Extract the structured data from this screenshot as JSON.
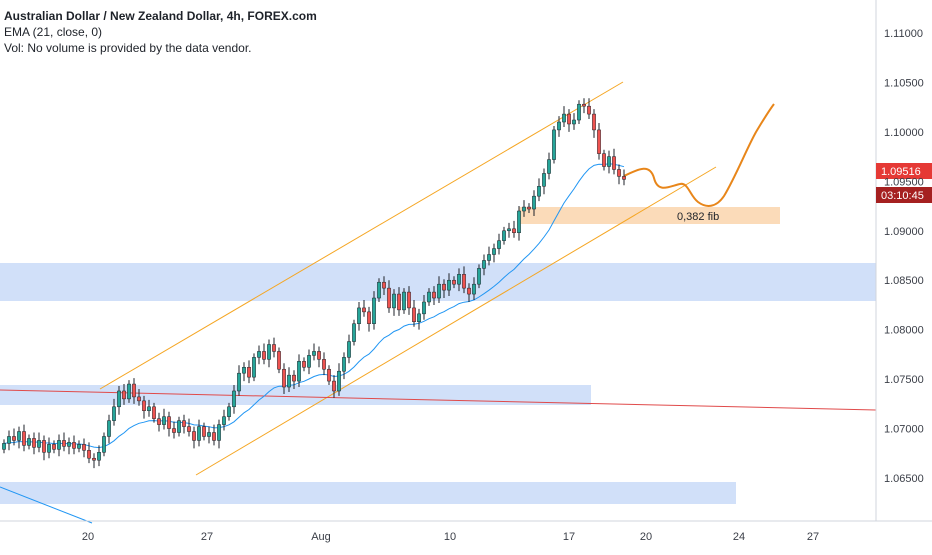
{
  "legend": {
    "title": "Australian Dollar / New Zealand Dollar, 4h, FOREX.com",
    "ema": "EMA (21, close, 0)",
    "vol": "Vol: No volume is provided by the data vendor."
  },
  "price_axis": {
    "ticks": [
      "1.11000",
      "1.10500",
      "1.10000",
      "1.09500",
      "1.09000",
      "1.08500",
      "1.08000",
      "1.07500",
      "1.07000",
      "1.06500"
    ],
    "current_price": "1.09516",
    "countdown": "03:10:45"
  },
  "time_axis": {
    "ticks": [
      "20",
      "27",
      "Aug",
      "10",
      "17",
      "20",
      "24",
      "27"
    ]
  },
  "annotation": {
    "fib_label": "0,382 fib"
  },
  "colors": {
    "up_candle": "#26a69a",
    "down_candle": "#ef5350",
    "candle_wick": "#1e2229",
    "ema_line": "#2196f3",
    "channel_line": "#f5a623",
    "projection_line": "#e8861a",
    "zone_fill": "#c9daf8",
    "fib_zone_fill": "#fbd9b5",
    "trend_line": "#e04a4a",
    "price_tag": "#e53935",
    "countdown_tag": "#a52020"
  },
  "chart_data": {
    "type": "candlestick",
    "ylim": [
      1.061,
      1.113
    ],
    "price_series_close": [
      1.0685,
      1.0692,
      1.0688,
      1.0697,
      1.0683,
      1.069,
      1.0681,
      1.0688,
      1.0676,
      1.0684,
      1.0679,
      1.0688,
      1.0682,
      1.0686,
      1.068,
      1.0684,
      1.0678,
      1.067,
      1.0668,
      1.0676,
      1.0692,
      1.0708,
      1.0722,
      1.0738,
      1.073,
      1.0745,
      1.0732,
      1.0728,
      1.0718,
      1.0722,
      1.071,
      1.0704,
      1.0712,
      1.07,
      1.0696,
      1.0708,
      1.0702,
      1.0697,
      1.0688,
      1.0702,
      1.0692,
      1.0696,
      1.0688,
      1.0704,
      1.0712,
      1.0722,
      1.0738,
      1.0756,
      1.0762,
      1.0752,
      1.0772,
      1.0778,
      1.077,
      1.0785,
      1.0778,
      1.076,
      1.0742,
      1.0754,
      1.0748,
      1.0768,
      1.0762,
      1.0774,
      1.0778,
      1.077,
      1.076,
      1.0748,
      1.0738,
      1.0758,
      1.0772,
      1.0788,
      1.0806,
      1.0822,
      1.0818,
      1.0806,
      1.0832,
      1.0848,
      1.0842,
      1.0822,
      1.0836,
      1.082,
      1.0838,
      1.0822,
      1.0808,
      1.0816,
      1.0828,
      1.0838,
      1.0832,
      1.0846,
      1.084,
      1.085,
      1.0846,
      1.0856,
      1.0842,
      1.0836,
      1.0846,
      1.0862,
      1.087,
      1.0876,
      1.0882,
      1.089,
      1.09,
      1.0902,
      1.0898,
      1.092,
      1.0924,
      1.0922,
      1.0935,
      1.0945,
      1.0958,
      1.0972,
      1.1002,
      1.101,
      1.1018,
      1.1008,
      1.1012,
      1.1028,
      1.1026,
      1.1018,
      1.1002,
      1.0978,
      1.0965,
      1.0975,
      1.0962,
      1.0955,
      1.0952
    ],
    "ema_period": 21,
    "horizontal_zones": [
      {
        "name": "upper-support-zone",
        "low": 1.0828,
        "high": 1.0865
      },
      {
        "name": "mid-support-zone",
        "low": 1.0724,
        "high": 1.0742
      },
      {
        "name": "lower-support-zone",
        "low": 1.0625,
        "high": 1.0643
      },
      {
        "name": "fib-zone",
        "low": 1.0905,
        "high": 1.0922,
        "label": "0,382 fib"
      }
    ]
  }
}
